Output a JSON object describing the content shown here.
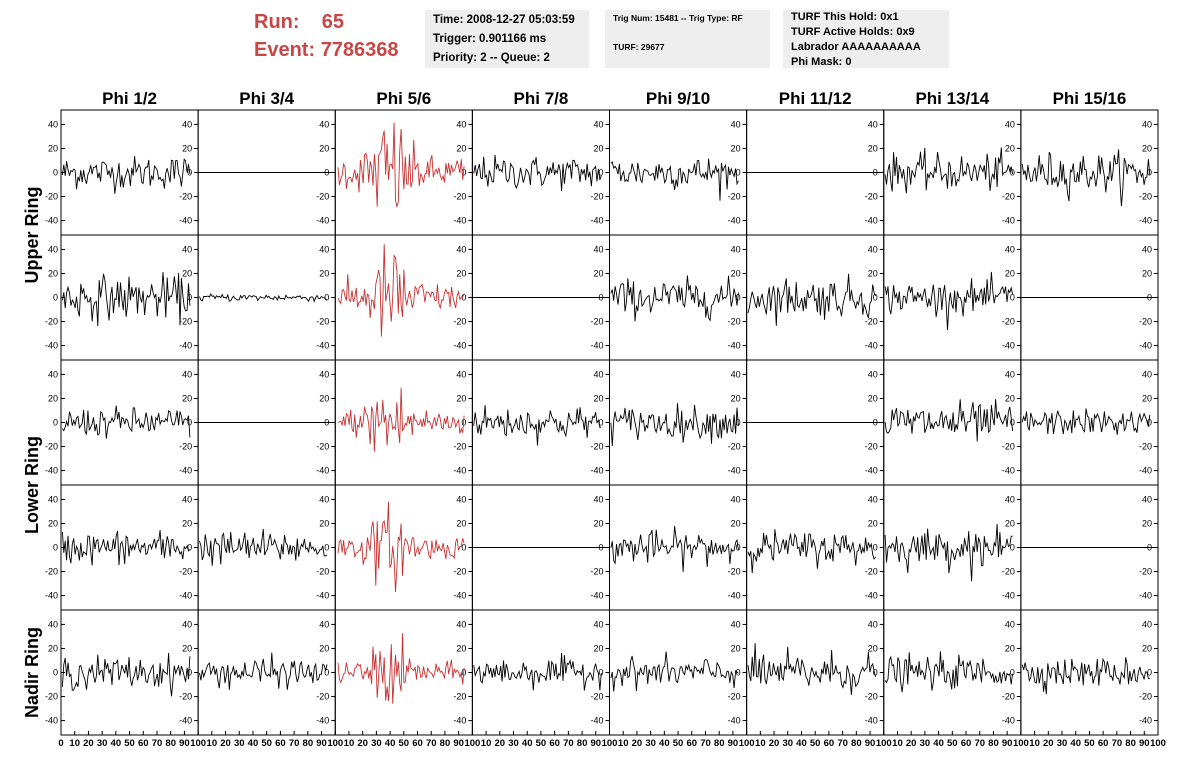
{
  "header": {
    "run_label": "Run:",
    "run_value": "65",
    "event_label": "Event:",
    "event_value": "7786368"
  },
  "info_time": {
    "line1": "Time: 2008-12-27 05:03:59",
    "line2": "Trigger: 0.901166 ms",
    "line3": "Priority: 2 -- Queue: 2"
  },
  "info_trig": {
    "line1": "Trig Num: 15481 -- Trig Type: RF",
    "line2": "TURF: 29677"
  },
  "info_turf": {
    "line1": "TURF This Hold: 0x1",
    "line2": "TURF Active Holds: 0x9",
    "line3": "Labrador AAAAAAAAAA",
    "line4": "Phi Mask: 0"
  },
  "colors": {
    "highlight": "#c83232",
    "trace": "#000000",
    "header_red": "#c74646"
  },
  "chart_data": {
    "type": "line",
    "columns": [
      "Phi 1/2",
      "Phi 3/4",
      "Phi 5/6",
      "Phi 7/8",
      "Phi 9/10",
      "Phi 11/12",
      "Phi 13/14",
      "Phi 15/16"
    ],
    "rows": [
      "Upper Ring",
      "Upper Ring",
      "Lower Ring",
      "Lower Ring",
      "Nadir Ring"
    ],
    "row_labels": [
      "Upper Ring",
      "Lower Ring",
      "Nadir Ring"
    ],
    "xlim": [
      0,
      100
    ],
    "ylim": [
      -52,
      52
    ],
    "y_ticks": [
      -40,
      -20,
      0,
      20,
      40
    ],
    "x_ticks": [
      0,
      10,
      20,
      30,
      40,
      50,
      60,
      70,
      80,
      90,
      100
    ],
    "highlight_column": 2,
    "panel_amplitude": [
      [
        9,
        0,
        16,
        9,
        9,
        0,
        10,
        11
      ],
      [
        12,
        2,
        14,
        0,
        10,
        11,
        9,
        0
      ],
      [
        8,
        0,
        13,
        9,
        9,
        0,
        11,
        7
      ],
      [
        9,
        9,
        11,
        0,
        9,
        9,
        10,
        0
      ],
      [
        9,
        8,
        10,
        8,
        8,
        11,
        9,
        8
      ]
    ],
    "pulse_center": 40,
    "samples": 90
  }
}
